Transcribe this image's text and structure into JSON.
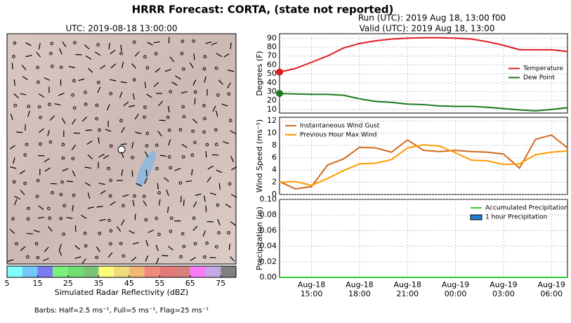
{
  "title": "HRRR Forecast: CORTA, (state not reported)",
  "run": "Run (UTC): 2019 Aug 18, 13:00 f00",
  "valid": "Valid (UTC): 2019 Aug 18, 13:00",
  "map": {
    "title": "UTC: 2019-08-18 13:00:00",
    "note": "Barbs: Half=2.5 ms⁻¹, Full=5 ms⁻¹, Flag=25 ms⁻¹"
  },
  "chart_data": [
    {
      "type": "colorbar",
      "xlabel": "Simulated Radar Reflectivity (dBZ)",
      "bins": [
        5,
        10,
        15,
        20,
        25,
        30,
        35,
        40,
        45,
        50,
        55,
        60,
        65,
        70,
        75,
        80
      ],
      "colors": [
        "#7ffcfc",
        "#72c8f8",
        "#7b7bf0",
        "#7cf07c",
        "#72dd72",
        "#79c479",
        "#fcfc7c",
        "#f0dc7c",
        "#f2b776",
        "#f08a7c",
        "#e47878",
        "#d88080",
        "#f87cf8",
        "#c8a8e4",
        "#808080"
      ],
      "xlim": [
        5,
        80
      ],
      "xticks": [
        5,
        15,
        25,
        35,
        45,
        55,
        65,
        75
      ]
    },
    {
      "type": "line",
      "ylabel": "Degrees (F)",
      "x": [
        0,
        1,
        2,
        3,
        4,
        5,
        6,
        7,
        8,
        9,
        10,
        11,
        12,
        13,
        14,
        15,
        16,
        17,
        18
      ],
      "series": [
        {
          "name": "Temperature",
          "color": "#e31a1c",
          "values": [
            52,
            56,
            63,
            70,
            79,
            84,
            87,
            89,
            90,
            90.5,
            90.5,
            90,
            89,
            86,
            82,
            77,
            77,
            77,
            75
          ]
        },
        {
          "name": "Dew Point",
          "color": "#1a7a1a",
          "values": [
            28,
            27.5,
            27,
            27,
            26,
            22,
            19,
            18,
            16,
            15.5,
            14,
            13.5,
            13.5,
            12.5,
            11,
            9.5,
            8.5,
            10,
            12
          ]
        }
      ],
      "xlim": [
        0,
        18
      ],
      "ylim": [
        6,
        95
      ],
      "yticks": [
        10,
        20,
        30,
        40,
        50,
        60,
        70,
        80,
        90
      ],
      "grid": true,
      "legend": "right"
    },
    {
      "type": "line",
      "ylabel": "Wind Speed (ms⁻¹)",
      "x": [
        0,
        1,
        2,
        3,
        4,
        5,
        6,
        7,
        8,
        9,
        10,
        11,
        12,
        13,
        14,
        15,
        16,
        17,
        18
      ],
      "series": [
        {
          "name": "Instantaneous Wind Gust",
          "color": "#d2691e",
          "values": [
            2.1,
            0.9,
            1.3,
            4.8,
            5.8,
            7.7,
            7.6,
            6.9,
            8.9,
            7.2,
            7.0,
            7.2,
            7.0,
            6.9,
            6.6,
            4.3,
            9.0,
            9.7,
            7.6
          ]
        },
        {
          "name": "Previous Hour Max Wind",
          "color": "#ff9a00",
          "values": [
            2.0,
            2.1,
            1.5,
            2.6,
            3.9,
            5.0,
            5.1,
            5.7,
            7.6,
            8.1,
            7.9,
            6.8,
            5.6,
            5.5,
            4.9,
            5.0,
            6.5,
            6.9,
            7.1
          ]
        }
      ],
      "xlim": [
        0,
        18
      ],
      "ylim": [
        0,
        12.6
      ],
      "yticks": [
        0,
        2,
        4,
        6,
        8,
        10,
        12
      ],
      "grid": true,
      "legend": "upper left"
    },
    {
      "type": "bar-line",
      "ylabel": "Precipitation (in)",
      "x": [
        0,
        1,
        2,
        3,
        4,
        5,
        6,
        7,
        8,
        9,
        10,
        11,
        12,
        13,
        14,
        15,
        16,
        17,
        18
      ],
      "series": [
        {
          "name": "Accumulated Precipitation",
          "kind": "line",
          "color": "#32cd32",
          "values": [
            0,
            0,
            0,
            0,
            0,
            0,
            0,
            0,
            0,
            0,
            0,
            0,
            0,
            0,
            0,
            0,
            0,
            0,
            0
          ]
        },
        {
          "name": "1 hour Precipitation",
          "kind": "bar",
          "color": "#1e7fd6",
          "values": [
            0,
            0,
            0,
            0,
            0,
            0,
            0,
            0,
            0,
            0,
            0,
            0,
            0,
            0,
            0,
            0,
            0,
            0,
            0
          ]
        }
      ],
      "xlim": [
        0,
        18
      ],
      "ylim": [
        0,
        0.1
      ],
      "yticks": [
        {
          "value": 0,
          "label": "0.00"
        },
        {
          "value": 0.02,
          "label": "0.02"
        },
        {
          "value": 0.04,
          "label": "0.04"
        },
        {
          "value": 0.06,
          "label": "0.06"
        },
        {
          "value": 0.08,
          "label": "0.08"
        },
        {
          "value": 0.1,
          "label": "0.10"
        }
      ],
      "xticks": [
        {
          "value": 2,
          "label": "Aug-18\n15:00"
        },
        {
          "value": 5,
          "label": "Aug-18\n18:00"
        },
        {
          "value": 8,
          "label": "Aug-18\n21:00"
        },
        {
          "value": 11,
          "label": "Aug-19\n00:00"
        },
        {
          "value": 14,
          "label": "Aug-19\n03:00"
        },
        {
          "value": 17,
          "label": "Aug-19\n06:00"
        }
      ],
      "grid": true,
      "legend": "upper right"
    }
  ]
}
